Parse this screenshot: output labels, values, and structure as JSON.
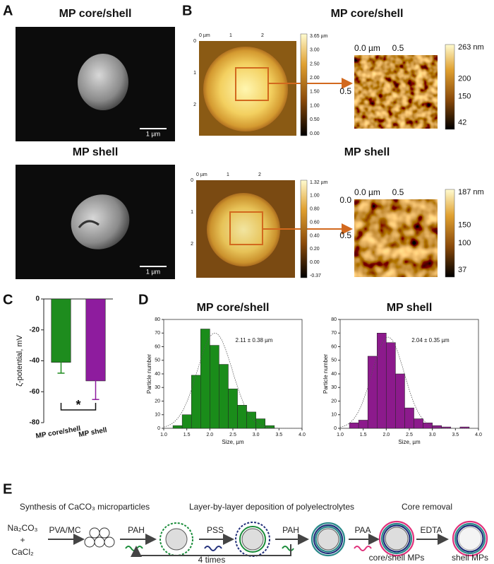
{
  "panel_labels": [
    "A",
    "B",
    "C",
    "D",
    "E"
  ],
  "panel_a": {
    "images": [
      {
        "title": "MP core/shell",
        "scale_bar": "1 µm"
      },
      {
        "title": "MP shell",
        "scale_bar": "1 µm"
      }
    ]
  },
  "panel_b": {
    "rows": [
      {
        "title": "MP core/shell",
        "image_x_ticks": [
          "0 µm",
          "1",
          "2"
        ],
        "image_y_ticks": [
          "0",
          "1",
          "2"
        ],
        "colorbar_ticks": [
          "3.65 µm",
          "3.00",
          "2.50",
          "2.00",
          "1.50",
          "1.00",
          "0.50",
          "0.00"
        ],
        "inset_x_ticks": [
          "0.0 µm",
          "0.5"
        ],
        "inset_y_ticks": [
          "0.5"
        ],
        "inset_colorbar_ticks": [
          "263 nm",
          "200",
          "150",
          "42"
        ]
      },
      {
        "title": "MP shell",
        "image_x_ticks": [
          "0 µm",
          "1",
          "2"
        ],
        "image_y_ticks": [
          "0",
          "1",
          "2"
        ],
        "colorbar_ticks": [
          "1.32 µm",
          "1.00",
          "0.80",
          "0.60",
          "0.40",
          "0.20",
          "0.00",
          "-0.37"
        ],
        "inset_x_ticks": [
          "0.0 µm",
          "0.5"
        ],
        "inset_y_ticks": [
          "0.0",
          "0.5"
        ],
        "inset_colorbar_ticks": [
          "187 nm",
          "150",
          "100",
          "37"
        ]
      }
    ]
  },
  "chart_data": [
    {
      "type": "bar",
      "categories": [
        "MP core/shell",
        "MP shell"
      ],
      "values": [
        -41,
        -53
      ],
      "errors": [
        7,
        12
      ],
      "colors": [
        "#1e8c1e",
        "#8e1c9e"
      ],
      "y_label": "ζ-potential, mV",
      "ylim": [
        -80,
        0
      ],
      "yticks": [
        -80,
        -60,
        -40,
        -20,
        0
      ],
      "annotation": "*"
    },
    {
      "type": "histogram",
      "title": "MP core/shell",
      "x_label": "Size, µm",
      "y_label": "Particle number",
      "annotation": "2.11 ± 0.38 µm",
      "bins": [
        1.2,
        1.4,
        1.6,
        1.8,
        2.0,
        2.2,
        2.4,
        2.6,
        2.8,
        3.0,
        3.2,
        3.4
      ],
      "counts": [
        2,
        10,
        39,
        73,
        61,
        47,
        29,
        17,
        12,
        7,
        2
      ],
      "color": "#1a8c1a",
      "fit": {
        "mean": 2.11,
        "sd": 0.38,
        "peak": 70
      },
      "xlim": [
        1,
        4
      ],
      "xticks": [
        {
          "value": 1,
          "label": "1.0"
        },
        1.5,
        {
          "value": 2,
          "label": "2.0"
        },
        2.5,
        {
          "value": 3,
          "label": "3.0"
        },
        3.5,
        {
          "value": 4,
          "label": "4.0"
        }
      ],
      "ylim": [
        0,
        80
      ],
      "yticks": [
        0,
        10,
        20,
        30,
        40,
        50,
        60,
        70,
        80
      ]
    },
    {
      "type": "histogram",
      "title": "MP shell",
      "x_label": "Size, µm",
      "y_label": "Particle number",
      "annotation": "2.04 ± 0.35 µm",
      "bins": [
        1.2,
        1.4,
        1.6,
        1.8,
        2.0,
        2.2,
        2.4,
        2.6,
        2.8,
        3.0,
        3.2,
        3.4,
        3.6,
        3.8
      ],
      "counts": [
        4,
        6,
        53,
        70,
        63,
        40,
        15,
        7,
        4,
        2,
        1,
        0,
        1
      ],
      "color": "#8c1a8c",
      "fit": {
        "mean": 2.04,
        "sd": 0.35,
        "peak": 67
      },
      "xlim": [
        1,
        4
      ],
      "xticks": [
        {
          "value": 1,
          "label": "1.0"
        },
        1.5,
        {
          "value": 2,
          "label": "2.0"
        },
        2.5,
        {
          "value": 3,
          "label": "3.0"
        },
        3.5,
        {
          "value": 4,
          "label": "4.0"
        }
      ],
      "ylim": [
        0,
        80
      ],
      "yticks": [
        0,
        10,
        20,
        30,
        40,
        50,
        60,
        70,
        80
      ]
    }
  ],
  "panel_e": {
    "headings": [
      "Synthesis of CaCO₃ microparticles",
      "Layer-by-layer deposition of polyelectrolytes",
      "Core removal"
    ],
    "reagents": [
      "Na₂CO₃",
      "+",
      "CaCl₂"
    ],
    "steps": [
      "PVA/MC",
      "PAH",
      "PSS",
      "PAH",
      "PAA",
      "EDTA"
    ],
    "loop": "4 times",
    "products": [
      "core/shell MPs",
      "shell MPs"
    ]
  }
}
